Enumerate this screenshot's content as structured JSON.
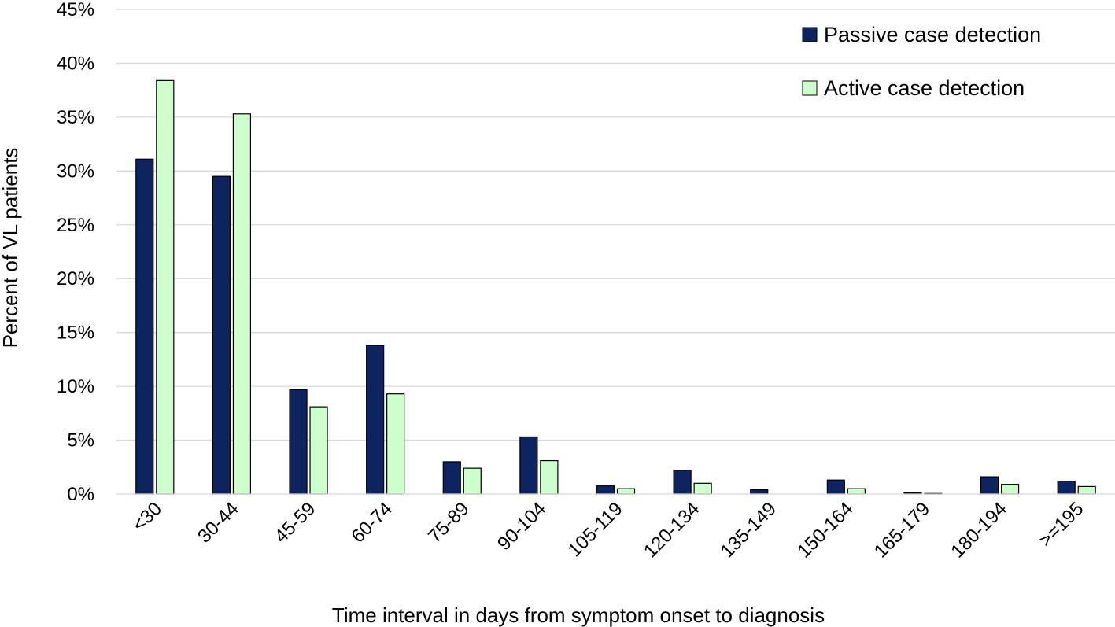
{
  "chart_data": {
    "type": "bar",
    "xlabel": "Time interval in days from symptom onset to diagnosis",
    "ylabel": "Percent of VL patients",
    "ylim": [
      0,
      45
    ],
    "yticks": [
      "0%",
      "5%",
      "10%",
      "15%",
      "20%",
      "25%",
      "30%",
      "35%",
      "40%",
      "45%"
    ],
    "grid": true,
    "legend_position": "top-right",
    "categories": [
      "<30",
      "30-44",
      "45-59",
      "60-74",
      "75-89",
      "90-104",
      "105-119",
      "120-134",
      "135-149",
      "150-164",
      "165-179",
      "180-194",
      ">=195"
    ],
    "series": [
      {
        "name": "Passive case detection",
        "color": "#0d2461",
        "values": [
          31.1,
          29.5,
          9.7,
          13.8,
          3.0,
          5.3,
          0.8,
          2.2,
          0.4,
          1.3,
          0.1,
          1.6,
          1.2
        ]
      },
      {
        "name": "Active case detection",
        "color": "#ccffcc",
        "values": [
          38.4,
          35.3,
          8.1,
          9.3,
          2.4,
          3.1,
          0.5,
          1.0,
          0.0,
          0.5,
          0.05,
          0.9,
          0.7
        ]
      }
    ]
  }
}
